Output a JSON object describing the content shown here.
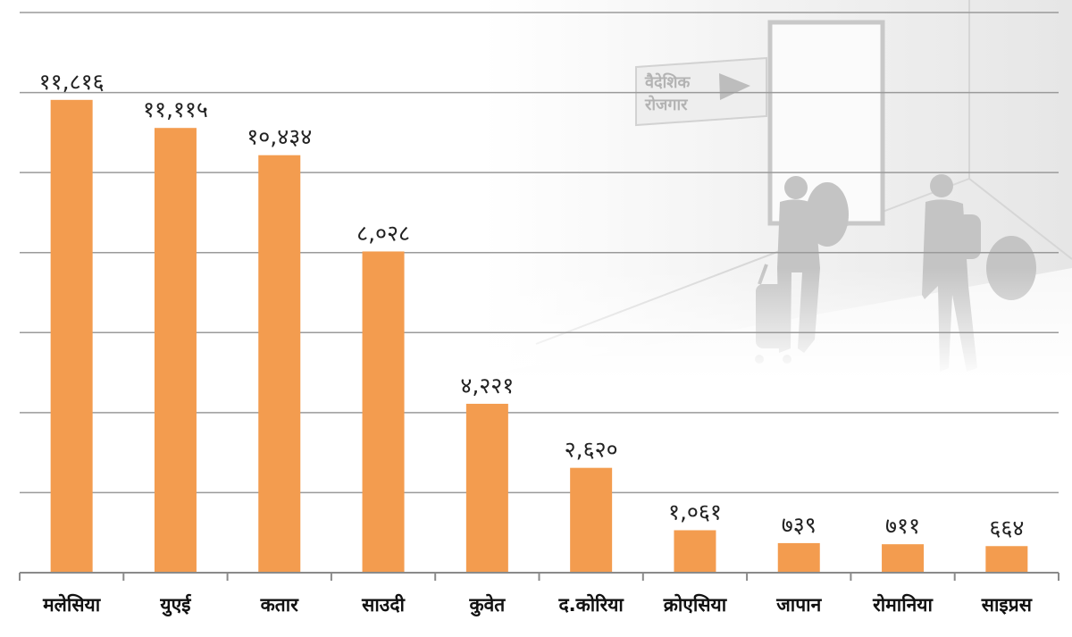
{
  "chart_data": {
    "type": "bar",
    "categories": [
      "मलेसिया",
      "युएई",
      "कतार",
      "साउदी",
      "कुवेत",
      "द.कोरिया",
      "क्रोएसिया",
      "जापान",
      "रोमानिया",
      "साइप्रस"
    ],
    "values": [
      11816,
      11115,
      10434,
      8028,
      4221,
      2620,
      1061,
      739,
      711,
      664
    ],
    "value_labels": [
      "११,८१६",
      "११,११५",
      "१०,४३४",
      "८,०२८",
      "४,२२१",
      "२,६२०",
      "१,०६१",
      "७३९",
      "७११",
      "६६४"
    ],
    "ylim": [
      0,
      14000
    ],
    "grid": true,
    "bar_color": "#F39C4F"
  },
  "illustration": {
    "sign_lines": [
      "वैदेशिक",
      "रोजगार"
    ]
  }
}
